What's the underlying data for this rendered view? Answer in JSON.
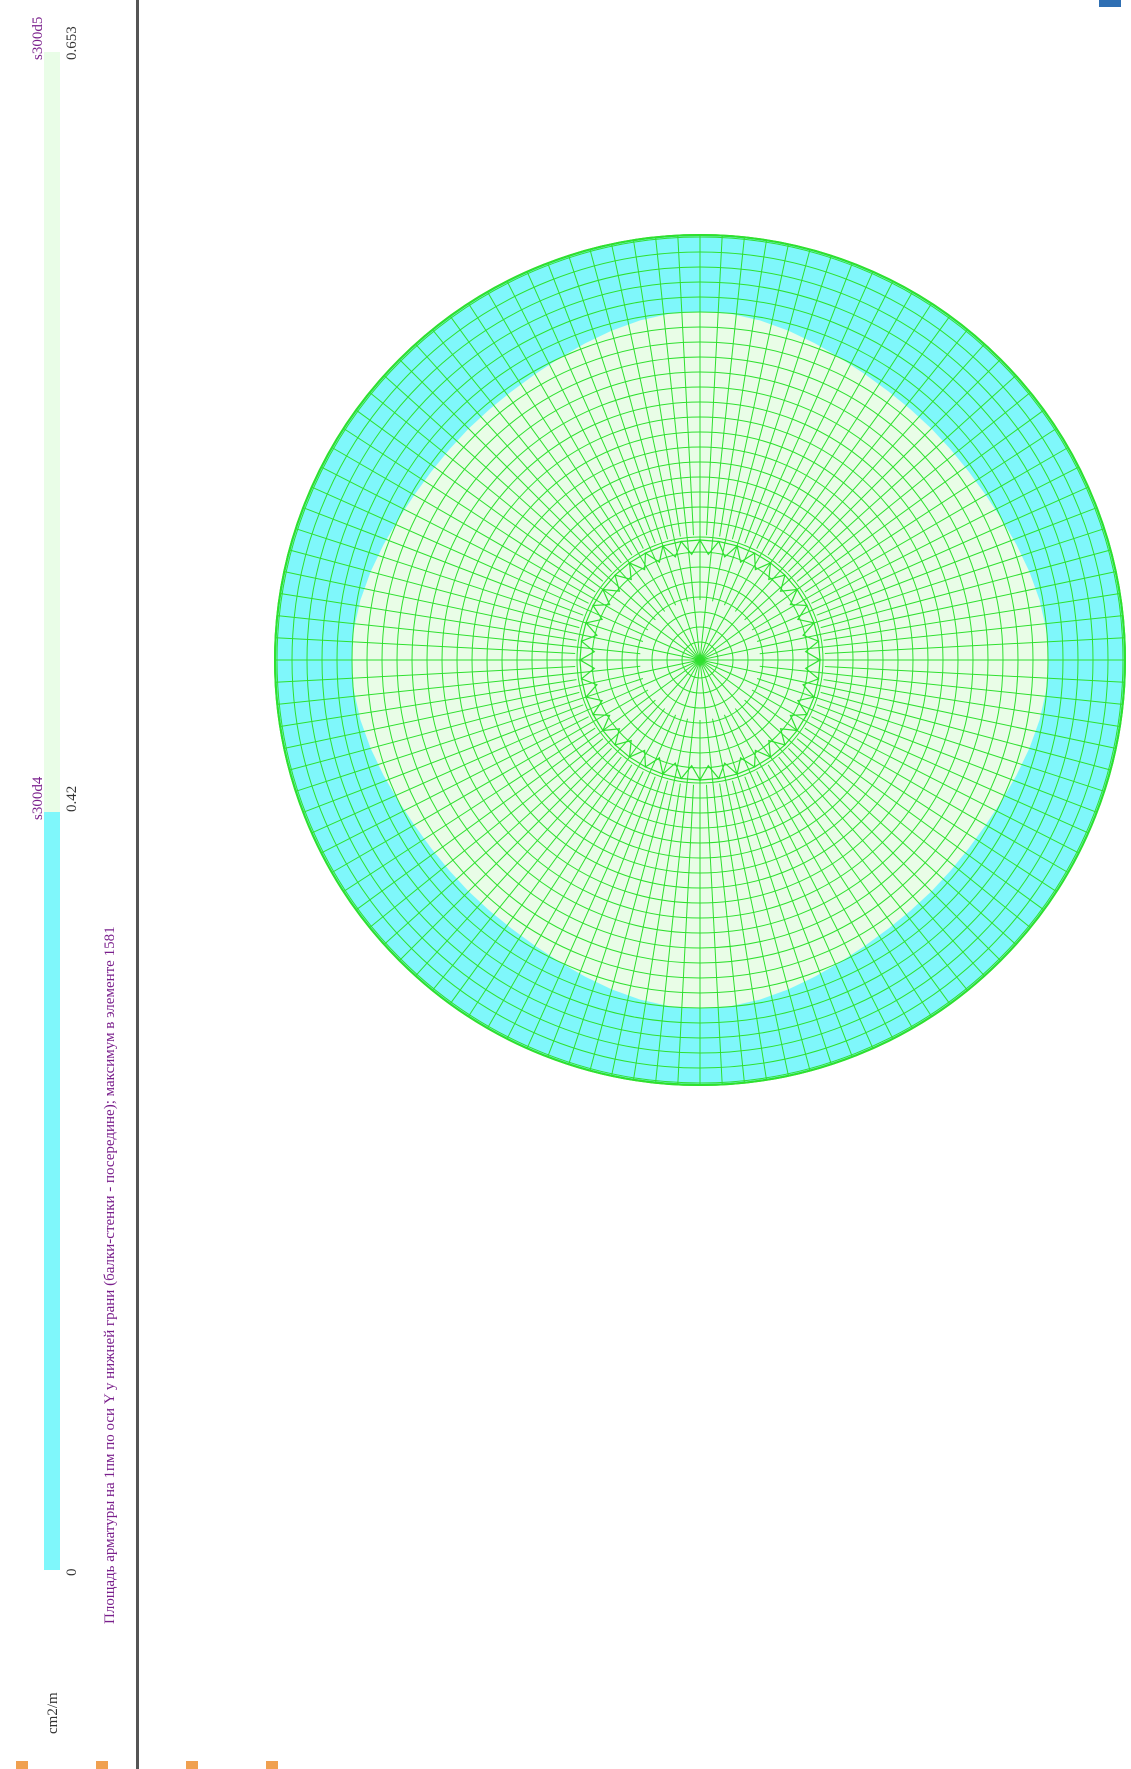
{
  "legend": {
    "segments": [
      {
        "from": 0,
        "to": 0.42,
        "color": "#7ff7fb",
        "label": "s300d4"
      },
      {
        "from": 0.42,
        "to": 0.653,
        "color": "#e9fde7",
        "label": "s300d5"
      }
    ],
    "ticks": [
      "0",
      "0.42",
      "0.653"
    ],
    "unit": "cm2/m"
  },
  "caption": "Площадь арматуры на 1пм по оси Y у нижней грани (балки-стенки - посередине); максимум в элементе 1581",
  "plot": {
    "mesh_color": "#2fe02f",
    "outer_zone_color": "#7ff7fb",
    "inner_zone_color": "#e9fde7"
  }
}
